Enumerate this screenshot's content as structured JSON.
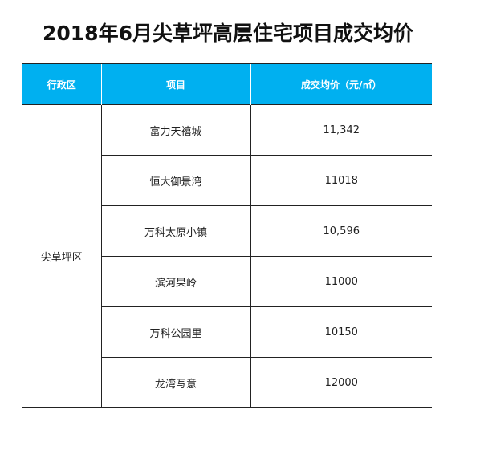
{
  "title": "2018年6月尖草坪高层住宅项目成交均价",
  "table": {
    "headers": {
      "district": "行政区",
      "project": "项目",
      "price": "成交均价（元/㎡）"
    },
    "district": "尖草坪区",
    "rows": [
      {
        "project": "富力天禧城",
        "price": "11,342"
      },
      {
        "project": "恒大御景湾",
        "price": "11018"
      },
      {
        "project": "万科太原小镇",
        "price": "10,596"
      },
      {
        "project": "滨河果岭",
        "price": "11000"
      },
      {
        "project": "万科公园里",
        "price": "10150"
      },
      {
        "project": "龙湾写意",
        "price": "12000"
      }
    ]
  },
  "colors": {
    "header_bg": "#00b0f0",
    "header_text": "#ffffff"
  }
}
